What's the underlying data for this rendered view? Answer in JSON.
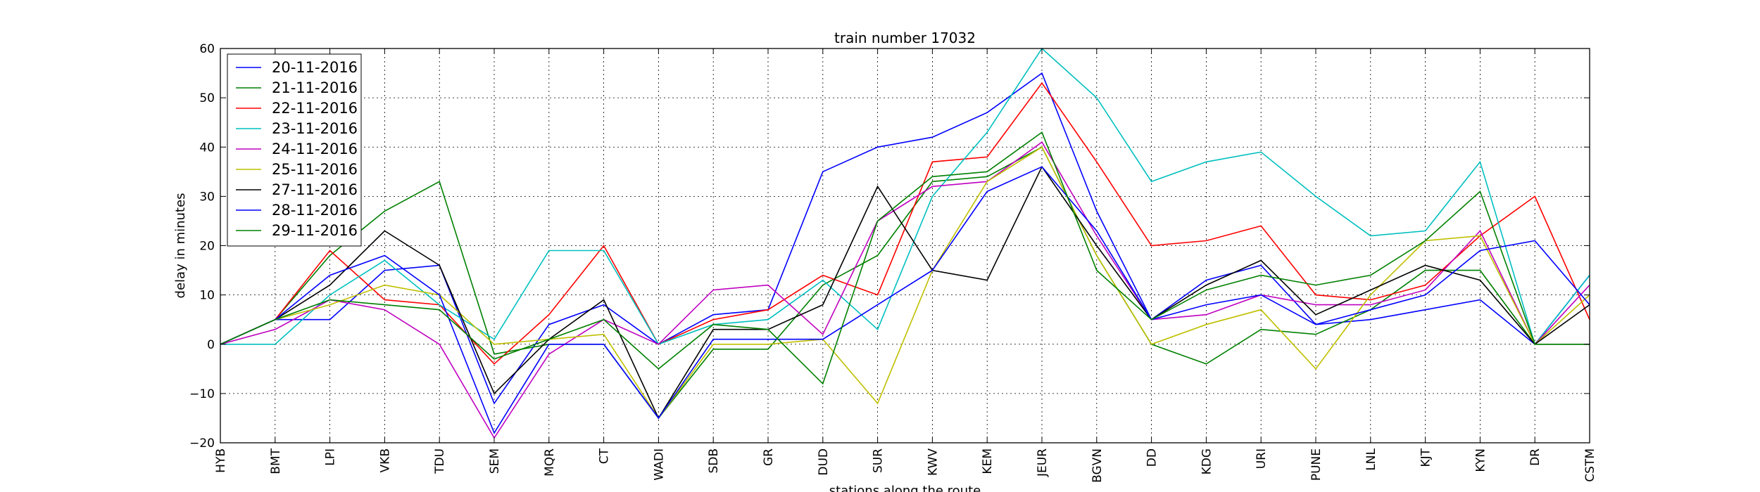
{
  "chart_data": {
    "type": "line",
    "title": "train number 17032",
    "xlabel": "stations along the route",
    "ylabel": "delay in minutes",
    "ylim": [
      -20,
      60
    ],
    "yticks": [
      "60",
      "50",
      "40",
      "30",
      "20",
      "10",
      "0",
      "−10",
      "−20"
    ],
    "grid": true,
    "legend_position": "top-left",
    "categories": [
      "HYB",
      "BMT",
      "LPI",
      "VKB",
      "TDU",
      "SEM",
      "MQR",
      "CT",
      "WADI",
      "SDB",
      "GR",
      "DUD",
      "SUR",
      "KWV",
      "KEM",
      "JEUR",
      "BGVN",
      "DD",
      "KDG",
      "URI",
      "PUNE",
      "LNL",
      "KJT",
      "KYN",
      "DR",
      "CSTM"
    ],
    "series": [
      {
        "name": "20-11-2016",
        "color": "#0000ff",
        "values": [
          0,
          5,
          5,
          15,
          16,
          -12,
          4,
          8,
          0,
          6,
          7,
          35,
          40,
          42,
          47,
          55,
          27,
          5,
          13,
          16,
          4,
          5,
          7,
          9,
          0,
          14
        ]
      },
      {
        "name": "21-11-2016",
        "color": "#008000",
        "values": [
          0,
          5,
          18,
          27,
          33,
          -2,
          0,
          0,
          -15,
          -1,
          -1,
          12,
          18,
          33,
          34,
          40,
          18,
          0,
          -4,
          3,
          2,
          7,
          15,
          15,
          0,
          0
        ]
      },
      {
        "name": "22-11-2016",
        "color": "#ff0000",
        "values": [
          0,
          5,
          19,
          9,
          8,
          -4,
          6,
          20,
          0,
          5,
          7,
          14,
          10,
          37,
          38,
          53,
          37,
          20,
          21,
          24,
          10,
          9,
          12,
          22,
          30,
          5
        ]
      },
      {
        "name": "23-11-2016",
        "color": "#00bfbf",
        "values": [
          0,
          0,
          10,
          17,
          8,
          1,
          19,
          19,
          0,
          4,
          5,
          13,
          3,
          30,
          43,
          60,
          50,
          33,
          37,
          39,
          30,
          22,
          23,
          37,
          0,
          14
        ]
      },
      {
        "name": "24-11-2016",
        "color": "#bf00bf",
        "values": [
          0,
          3,
          9,
          7,
          0,
          -19,
          -2,
          5,
          0,
          11,
          12,
          2,
          25,
          32,
          33,
          41,
          22,
          5,
          6,
          10,
          8,
          8,
          11,
          23,
          0,
          12
        ]
      },
      {
        "name": "25-11-2016",
        "color": "#bfbf00",
        "values": [
          0,
          5,
          8,
          12,
          10,
          0,
          1,
          2,
          -15,
          0,
          0,
          1,
          -12,
          15,
          33,
          40,
          18,
          0,
          4,
          7,
          -5,
          10,
          21,
          22,
          0,
          10
        ]
      },
      {
        "name": "27-11-2016",
        "color": "#000000",
        "values": [
          0,
          5,
          12,
          23,
          16,
          -10,
          1,
          9,
          -15,
          3,
          3,
          8,
          32,
          15,
          13,
          36,
          20,
          5,
          12,
          17,
          6,
          11,
          16,
          13,
          0,
          8
        ]
      },
      {
        "name": "28-11-2016",
        "color": "#0000ff",
        "values": [
          0,
          5,
          14,
          18,
          10,
          -18,
          0,
          0,
          -15,
          1,
          1,
          1,
          8,
          15,
          31,
          36,
          23,
          5,
          8,
          10,
          4,
          7,
          10,
          19,
          21,
          8
        ]
      },
      {
        "name": "29-11-2016",
        "color": "#008000",
        "values": [
          0,
          5,
          9,
          8,
          7,
          -3,
          1,
          5,
          -5,
          4,
          3,
          -8,
          25,
          34,
          35,
          43,
          15,
          5,
          11,
          14,
          12,
          14,
          21,
          31,
          0,
          0
        ]
      }
    ]
  }
}
